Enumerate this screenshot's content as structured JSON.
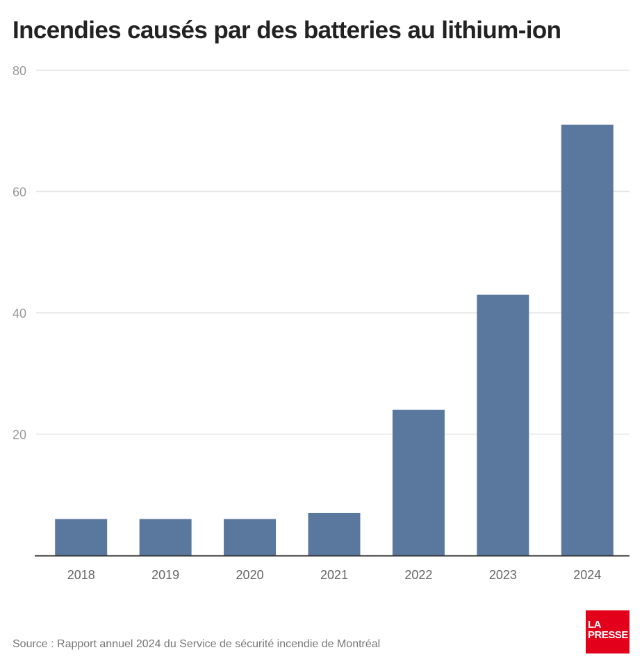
{
  "title": "Incendies causés par des batteries au lithium-ion",
  "source": "Source : Rapport annuel 2024 du Service de sécurité incendie de Montréal",
  "logo": {
    "line1": "LA",
    "line2": "PRESSE",
    "color": "#e2001a"
  },
  "colors": {
    "bar": "#5a789e",
    "grid": "#e6e6e6",
    "axis": "#333333",
    "tick_text": "#999999",
    "category_text": "#666666"
  },
  "chart_data": {
    "type": "bar",
    "title": "Incendies causés par des batteries au lithium-ion",
    "xlabel": "",
    "ylabel": "",
    "categories": [
      "2018",
      "2019",
      "2020",
      "2021",
      "2022",
      "2023",
      "2024"
    ],
    "values": [
      6,
      6,
      6,
      7,
      24,
      43,
      71
    ],
    "ylim": [
      0,
      80
    ],
    "yticks": [
      20,
      40,
      60,
      80
    ],
    "grid": true,
    "legend": "none"
  }
}
